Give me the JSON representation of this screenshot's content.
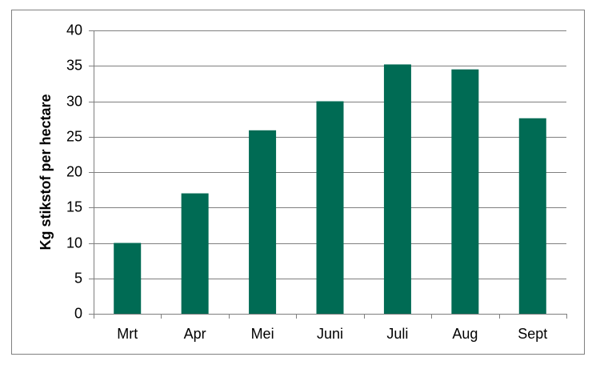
{
  "chart_data": {
    "type": "bar",
    "y_label": "Kg stikstof per hectare",
    "categories": [
      "Mrt",
      "Apr",
      "Mei",
      "Juni",
      "Juli",
      "Aug",
      "Sept"
    ],
    "values": [
      10,
      17,
      25.9,
      30,
      35.2,
      34.5,
      27.6
    ],
    "color": "#006b54",
    "ylim": [
      0,
      40
    ],
    "yticks": [
      0,
      5,
      10,
      15,
      20,
      25,
      30,
      35,
      40
    ],
    "grid": true
  }
}
